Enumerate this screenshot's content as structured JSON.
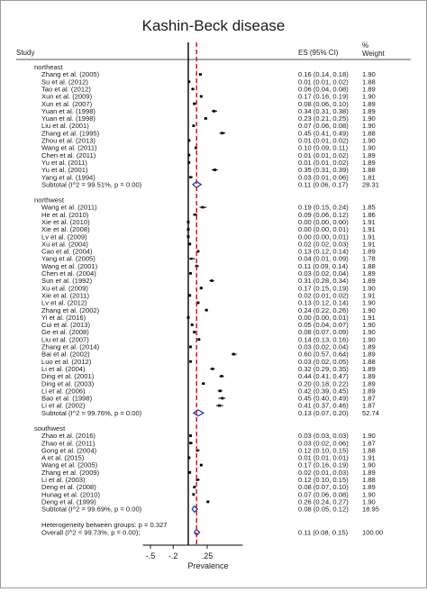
{
  "chart_data": {
    "type": "forest",
    "title": "Kashin-Beck disease",
    "xlabel": "Prevalence",
    "header": {
      "study": "Study",
      "es": "ES (95% CI)",
      "pct": "%",
      "weight": "Weight"
    },
    "x_ticks": [
      {
        "value": -0.5,
        "label": "-.5"
      },
      {
        "value": -0.2,
        "label": "-.2"
      },
      {
        "value": 0.25,
        "label": ".25"
      }
    ],
    "null_line": 0,
    "overall_line": 0.11,
    "xlim": [
      -0.6,
      0.72
    ],
    "groups": [
      {
        "name": "northeast",
        "studies": [
          {
            "study": "Zhang et al. (2005)",
            "es": 0.16,
            "lo": 0.14,
            "hi": 0.18,
            "ci_text": "0.16 (0.14, 0.18)",
            "weight": "1.90"
          },
          {
            "study": "Su et al. (2012)",
            "es": 0.01,
            "lo": 0.01,
            "hi": 0.02,
            "ci_text": "0.01 (0.01, 0.02)",
            "weight": "1.88"
          },
          {
            "study": "Tao et al. (2012)",
            "es": 0.06,
            "lo": 0.04,
            "hi": 0.08,
            "ci_text": "0.06 (0.04, 0.08)",
            "weight": "1.89"
          },
          {
            "study": "Xun et al. (2009)",
            "es": 0.17,
            "lo": 0.16,
            "hi": 0.19,
            "ci_text": "0.17 (0.16, 0.19)",
            "weight": "1.90"
          },
          {
            "study": "Xun et al. (2007)",
            "es": 0.08,
            "lo": 0.06,
            "hi": 0.1,
            "ci_text": "0.08 (0.06, 0.10)",
            "weight": "1.89"
          },
          {
            "study": "Yuan et al. (1998)",
            "es": 0.34,
            "lo": 0.31,
            "hi": 0.38,
            "ci_text": "0.34 (0.31, 0.38)",
            "weight": "1.89"
          },
          {
            "study": "Yuan et al. (1998)",
            "es": 0.23,
            "lo": 0.21,
            "hi": 0.25,
            "ci_text": "0.23 (0.21, 0.25)",
            "weight": "1.90"
          },
          {
            "study": "Liu et al. (2001)",
            "es": 0.07,
            "lo": 0.06,
            "hi": 0.08,
            "ci_text": "0.07 (0.06, 0.08)",
            "weight": "1.90"
          },
          {
            "study": "Zhang et al. (1995)",
            "es": 0.45,
            "lo": 0.41,
            "hi": 0.49,
            "ci_text": "0.45 (0.41, 0.49)",
            "weight": "1.88"
          },
          {
            "study": "Zhou et al. (2013)",
            "es": 0.01,
            "lo": 0.01,
            "hi": 0.02,
            "ci_text": "0.01 (0.01, 0.02)",
            "weight": "1.90"
          },
          {
            "study": "Wang et al. (2011)",
            "es": 0.1,
            "lo": 0.09,
            "hi": 0.11,
            "ci_text": "0.10 (0.09, 0.11)",
            "weight": "1.90"
          },
          {
            "study": "Chen et al. (2011)",
            "es": 0.01,
            "lo": 0.01,
            "hi": 0.02,
            "ci_text": "0.01 (0.01, 0.02)",
            "weight": "1.89"
          },
          {
            "study": "Yu et al. (2011)",
            "es": 0.01,
            "lo": 0.01,
            "hi": 0.02,
            "ci_text": "0.01 (0.01, 0.02)",
            "weight": "1.89"
          },
          {
            "study": "Yu et al. (2001)",
            "es": 0.35,
            "lo": 0.31,
            "hi": 0.39,
            "ci_text": "0.35 (0.31, 0.39)",
            "weight": "1.88"
          },
          {
            "study": "Yang et al. (1994)",
            "es": 0.03,
            "lo": 0.01,
            "hi": 0.06,
            "ci_text": "0.03 (0.01, 0.06)",
            "weight": "1.81"
          }
        ],
        "subtotal": {
          "label": "Subtotal  (I^2 = 99.51%, p = 0.00)",
          "es": 0.11,
          "lo": 0.06,
          "hi": 0.17,
          "ci_text": "0.11 (0.06, 0.17)",
          "weight": "28.31"
        }
      },
      {
        "name": "northwest",
        "studies": [
          {
            "study": "Wang et al. (2011)",
            "es": 0.19,
            "lo": 0.15,
            "hi": 0.24,
            "ci_text": "0.19 (0.15, 0.24)",
            "weight": "1.85"
          },
          {
            "study": "He et al. (2010)",
            "es": 0.09,
            "lo": 0.06,
            "hi": 0.12,
            "ci_text": "0.09 (0.06, 0.12)",
            "weight": "1.86"
          },
          {
            "study": "Xie et al. (2010)",
            "es": 0.0,
            "lo": 0.0,
            "hi": 0.0,
            "ci_text": "0.00 (0.00, 0.00)",
            "weight": "1.91"
          },
          {
            "study": "Xie et al. (2008)",
            "es": 0.0,
            "lo": 0.0,
            "hi": 0.01,
            "ci_text": "0.00 (0.00, 0.01)",
            "weight": "1.91"
          },
          {
            "study": "Lv et al. (2009)",
            "es": 0.0,
            "lo": 0.0,
            "hi": 0.01,
            "ci_text": "0.00 (0.00, 0.01)",
            "weight": "1.91"
          },
          {
            "study": "Xu et al. (2004)",
            "es": 0.02,
            "lo": 0.02,
            "hi": 0.03,
            "ci_text": "0.02 (0.02, 0.03)",
            "weight": "1.91"
          },
          {
            "study": "Cao et al. (2004)",
            "es": 0.13,
            "lo": 0.12,
            "hi": 0.14,
            "ci_text": "0.13 (0.12, 0.14)",
            "weight": "1.89"
          },
          {
            "study": "Yang et al. (2005)",
            "es": 0.04,
            "lo": 0.01,
            "hi": 0.09,
            "ci_text": "0.04 (0.01, 0.09)",
            "weight": "1.78"
          },
          {
            "study": "Wang et al. (2001)",
            "es": 0.11,
            "lo": 0.09,
            "hi": 0.14,
            "ci_text": "0.11 (0.09, 0.14)",
            "weight": "1.88"
          },
          {
            "study": "Chen et al. (2004)",
            "es": 0.03,
            "lo": 0.02,
            "hi": 0.04,
            "ci_text": "0.03 (0.02, 0.04)",
            "weight": "1.89"
          },
          {
            "study": "Sun et al. (1992)",
            "es": 0.31,
            "lo": 0.28,
            "hi": 0.34,
            "ci_text": "0.31 (0.28, 0.34)",
            "weight": "1.89"
          },
          {
            "study": "Xu et al. (2009)",
            "es": 0.17,
            "lo": 0.15,
            "hi": 0.19,
            "ci_text": "0.17 (0.15, 0.19)",
            "weight": "1.90"
          },
          {
            "study": "Xie et al. (2011)",
            "es": 0.02,
            "lo": 0.01,
            "hi": 0.02,
            "ci_text": "0.02 (0.01, 0.02)",
            "weight": "1.91"
          },
          {
            "study": "Lv et al. (2012)",
            "es": 0.13,
            "lo": 0.12,
            "hi": 0.14,
            "ci_text": "0.13 (0.12, 0.14)",
            "weight": "1.90"
          },
          {
            "study": "Zhang et al. (2002)",
            "es": 0.24,
            "lo": 0.22,
            "hi": 0.26,
            "ci_text": "0.24 (0.22, 0.26)",
            "weight": "1.90"
          },
          {
            "study": "Yi et al. (2016)",
            "es": 0.0,
            "lo": 0.0,
            "hi": 0.01,
            "ci_text": "0.00 (0.00, 0.01)",
            "weight": "1.91"
          },
          {
            "study": "Cui et al. (2013)",
            "es": 0.05,
            "lo": 0.04,
            "hi": 0.07,
            "ci_text": "0.05 (0.04, 0.07)",
            "weight": "1.90"
          },
          {
            "study": "Ge et al. (2008)",
            "es": 0.08,
            "lo": 0.07,
            "hi": 0.09,
            "ci_text": "0.08 (0.07, 0.09)",
            "weight": "1.90"
          },
          {
            "study": "Liu et al. (2007)",
            "es": 0.14,
            "lo": 0.13,
            "hi": 0.16,
            "ci_text": "0.14 (0.13, 0.16)",
            "weight": "1.90"
          },
          {
            "study": "Zhang et al. (2014)",
            "es": 0.03,
            "lo": 0.02,
            "hi": 0.04,
            "ci_text": "0.03 (0.02, 0.04)",
            "weight": "1.89"
          },
          {
            "study": "Bai et al. (2002)",
            "es": 0.6,
            "lo": 0.57,
            "hi": 0.64,
            "ci_text": "0.60 (0.57, 0.64)",
            "weight": "1.89"
          },
          {
            "study": "Luo et al. (2012)",
            "es": 0.03,
            "lo": 0.02,
            "hi": 0.05,
            "ci_text": "0.03 (0.02, 0.05)",
            "weight": "1.88"
          },
          {
            "study": "Li et al. (2004)",
            "es": 0.32,
            "lo": 0.29,
            "hi": 0.35,
            "ci_text": "0.32 (0.29, 0.35)",
            "weight": "1.89"
          },
          {
            "study": "Ding et al. (2001)",
            "es": 0.44,
            "lo": 0.41,
            "hi": 0.47,
            "ci_text": "0.44 (0.41, 0.47)",
            "weight": "1.89"
          },
          {
            "study": "Ding et al. (2003)",
            "es": 0.2,
            "lo": 0.18,
            "hi": 0.22,
            "ci_text": "0.20 (0.18, 0.22)",
            "weight": "1.89"
          },
          {
            "study": "Li et al. (2006)",
            "es": 0.42,
            "lo": 0.39,
            "hi": 0.45,
            "ci_text": "0.42 (0.39, 0.45)",
            "weight": "1.89"
          },
          {
            "study": "Bao et al. (1998)",
            "es": 0.45,
            "lo": 0.4,
            "hi": 0.49,
            "ci_text": "0.45 (0.40, 0.49)",
            "weight": "1.87"
          },
          {
            "study": "Li et al. (2002)",
            "es": 0.41,
            "lo": 0.37,
            "hi": 0.46,
            "ci_text": "0.41 (0.37, 0.46)",
            "weight": "1.87"
          }
        ],
        "subtotal": {
          "label": "Subtotal  (I^2 = 99.76%, p = 0.00)",
          "es": 0.13,
          "lo": 0.07,
          "hi": 0.2,
          "ci_text": "0.13 (0.07, 0.20)",
          "weight": "52.74"
        }
      },
      {
        "name": "southwest",
        "studies": [
          {
            "study": "Zhao et al. (2016)",
            "es": 0.03,
            "lo": 0.03,
            "hi": 0.03,
            "ci_text": "0.03 (0.03, 0.03)",
            "weight": "1.90"
          },
          {
            "study": "Zhao et al. (2011)",
            "es": 0.03,
            "lo": 0.02,
            "hi": 0.06,
            "ci_text": "0.03 (0.02, 0.06)",
            "weight": "1.87"
          },
          {
            "study": "Gong et al. (2004)",
            "es": 0.12,
            "lo": 0.1,
            "hi": 0.15,
            "ci_text": "0.12 (0.10, 0.15)",
            "weight": "1.88"
          },
          {
            "study": "A et al. (2015)",
            "es": 0.01,
            "lo": 0.01,
            "hi": 0.01,
            "ci_text": "0.01 (0.01, 0.01)",
            "weight": "1.91"
          },
          {
            "study": "Wang et al. (2005)",
            "es": 0.17,
            "lo": 0.16,
            "hi": 0.19,
            "ci_text": "0.17 (0.16, 0.19)",
            "weight": "1.90"
          },
          {
            "study": "Zhang et al. (2009)",
            "es": 0.02,
            "lo": 0.01,
            "hi": 0.03,
            "ci_text": "0.02 (0.01, 0.03)",
            "weight": "1.89"
          },
          {
            "study": "Li et al. (2003)",
            "es": 0.12,
            "lo": 0.1,
            "hi": 0.15,
            "ci_text": "0.12 (0.10, 0.15)",
            "weight": "1.88"
          },
          {
            "study": "Deng et al. (2008)",
            "es": 0.08,
            "lo": 0.07,
            "hi": 0.1,
            "ci_text": "0.08 (0.07, 0.10)",
            "weight": "1.89"
          },
          {
            "study": "Hunag et al. (2010)",
            "es": 0.07,
            "lo": 0.06,
            "hi": 0.08,
            "ci_text": "0.07 (0.06, 0.08)",
            "weight": "1.90"
          },
          {
            "study": "Deng et al. (1999)",
            "es": 0.26,
            "lo": 0.24,
            "hi": 0.27,
            "ci_text": "0.26 (0.24, 0.27)",
            "weight": "1.90"
          }
        ],
        "subtotal": {
          "label": "Subtotal  (I^2 = 99.69%, p = 0.00)",
          "es": 0.08,
          "lo": 0.05,
          "hi": 0.12,
          "ci_text": "0.08 (0.05, 0.12)",
          "weight": "18.95"
        }
      }
    ],
    "heterogeneity": "Heterogeneity between groups: p = 0.327",
    "overall": {
      "label": "Overall  (I^2 = 99.73%, p = 0.00);",
      "es": 0.11,
      "lo": 0.08,
      "hi": 0.15,
      "ci_text": "0.11 (0.08, 0.15)",
      "weight": "100.00"
    },
    "colors": {
      "overall_line": "#e0141b",
      "diamond": "#1a3fb5",
      "marks": "#000000",
      "text": "#1a1a1a"
    }
  }
}
